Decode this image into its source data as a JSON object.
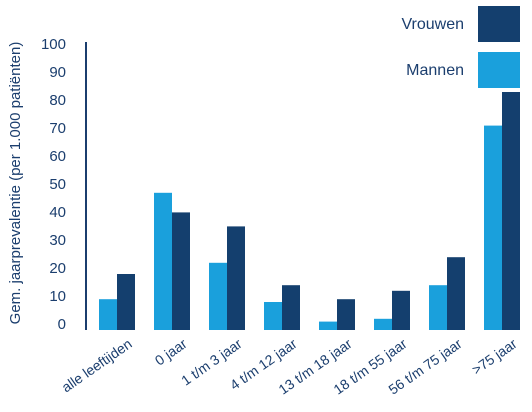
{
  "chart_data": {
    "type": "bar",
    "title": "",
    "xlabel": "",
    "ylabel": "Gem. jaarprevalentie (per 1.000 patiënten)",
    "ylim": [
      0,
      100
    ],
    "yticks": [
      "0",
      "10",
      "20",
      "30",
      "40",
      "50",
      "60",
      "70",
      "80",
      "90",
      "100"
    ],
    "categories": [
      "alle leeftijden",
      "0 jaar",
      "1 t/m 3 jaar",
      "4 t/m 12 jaar",
      "13 t/m 18 jaar",
      "18 t/m 55 jaar",
      "56 t/m 75 jaar",
      ">75 jaar"
    ],
    "series": [
      {
        "name": "Mannen",
        "color": "#1aa0dc",
        "values": [
          11,
          49,
          24,
          10,
          3,
          4,
          16,
          73
        ]
      },
      {
        "name": "Vrouwen",
        "color": "#143f6e",
        "values": [
          20,
          42,
          37,
          16,
          11,
          14,
          26,
          85
        ]
      }
    ],
    "legend": {
      "placement": "top-right",
      "order": [
        "Vrouwen",
        "Mannen"
      ]
    },
    "grid": false
  }
}
